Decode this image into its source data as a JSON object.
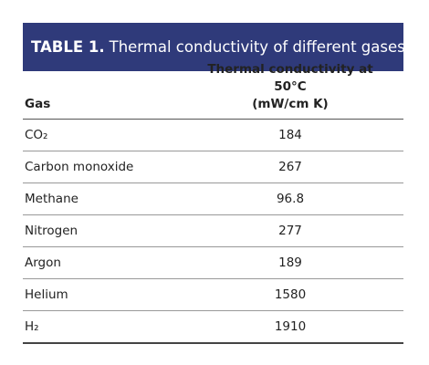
{
  "table": {
    "title": {
      "label": "TABLE 1.",
      "text": "Thermal conductivity of different gases"
    },
    "header": {
      "gas": "Gas",
      "conductivity": [
        "Thermal conductivity at 50°C",
        "(mW/cm K)"
      ]
    },
    "rows": [
      [
        "CO₂",
        184
      ],
      [
        "Carbon monoxide",
        267
      ],
      [
        "Methane",
        96.8
      ],
      [
        "Nitrogen",
        277
      ],
      [
        "Argon",
        189
      ],
      [
        "Helium",
        1580
      ],
      [
        "H₂",
        1910
      ]
    ]
  }
}
